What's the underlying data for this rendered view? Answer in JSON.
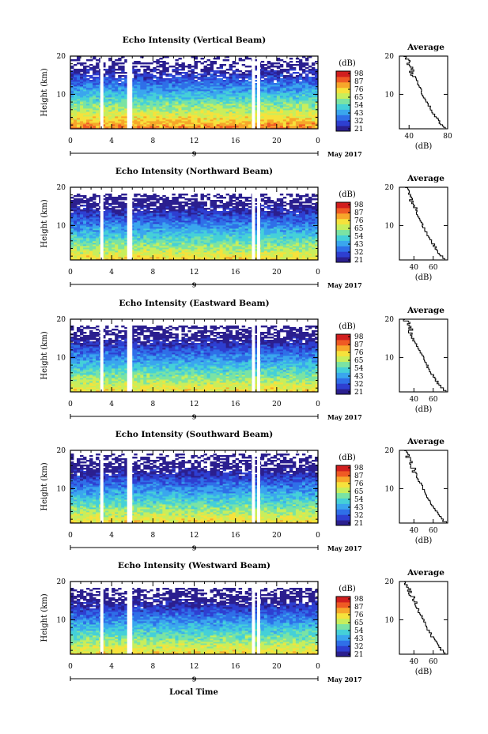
{
  "colors": {
    "colormap": [
      "#2b1f8f",
      "#2e3fd1",
      "#2f6fe8",
      "#3aa6ee",
      "#45d0d8",
      "#7be3a3",
      "#c8ee5c",
      "#f6e23c",
      "#f7a62b",
      "#ef5a24",
      "#d11e1e"
    ]
  },
  "common": {
    "ylabel": "Height (km)",
    "xticks": [
      "0",
      "4",
      "8",
      "12",
      "16",
      "20",
      "0"
    ],
    "date_tick": "9",
    "month_label": "May 2017",
    "xlabel": "Local Time",
    "cbar_unit": "(dB)",
    "cbar_ticks": [
      "98",
      "87",
      "76",
      "65",
      "54",
      "43",
      "32",
      "21"
    ],
    "avg_title": "Average",
    "avg_xlabel": "(dB)"
  },
  "chart_data": [
    {
      "type": "heatmap",
      "title": "Echo Intensity (Vertical Beam)",
      "ylim": [
        1,
        20
      ],
      "yticks": [
        "20",
        "10"
      ],
      "xlim": [
        0,
        24
      ],
      "clim": [
        21,
        98
      ],
      "gaps": [
        [
          2.9,
          3.2
        ],
        [
          5.5,
          6.0
        ],
        [
          17.6,
          17.9
        ],
        [
          18.1,
          18.4
        ]
      ],
      "profile": {
        "xlim": [
          30,
          80
        ],
        "xticks": [
          "40",
          "80"
        ]
      }
    },
    {
      "type": "heatmap",
      "title": "Echo Intensity (Northward Beam)",
      "ylim": [
        1,
        20
      ],
      "yticks": [
        "20",
        "10"
      ],
      "xlim": [
        0,
        24
      ],
      "clim": [
        21,
        98
      ],
      "gaps": [
        [
          2.9,
          3.2
        ],
        [
          5.5,
          6.0
        ],
        [
          17.6,
          17.9
        ],
        [
          18.1,
          18.4
        ]
      ],
      "profile": {
        "xlim": [
          25,
          75
        ],
        "xticks": [
          "40",
          "60"
        ]
      }
    },
    {
      "type": "heatmap",
      "title": "Echo Intensity (Eastward Beam)",
      "ylim": [
        1,
        20
      ],
      "yticks": [
        "20",
        "10"
      ],
      "xlim": [
        0,
        24
      ],
      "clim": [
        21,
        98
      ],
      "gaps": [
        [
          2.9,
          3.2
        ],
        [
          5.5,
          6.0
        ],
        [
          17.6,
          17.9
        ],
        [
          18.1,
          18.4
        ]
      ],
      "profile": {
        "xlim": [
          25,
          75
        ],
        "xticks": [
          "40",
          "60"
        ]
      }
    },
    {
      "type": "heatmap",
      "title": "Echo Intensity (Southward Beam)",
      "ylim": [
        1,
        20
      ],
      "yticks": [
        "20",
        "10"
      ],
      "xlim": [
        0,
        24
      ],
      "clim": [
        21,
        98
      ],
      "gaps": [
        [
          2.9,
          3.2
        ],
        [
          5.5,
          6.0
        ],
        [
          17.6,
          17.9
        ],
        [
          18.1,
          18.4
        ]
      ],
      "profile": {
        "xlim": [
          25,
          75
        ],
        "xticks": [
          "40",
          "60"
        ]
      }
    },
    {
      "type": "heatmap",
      "title": "Echo Intensity (Westward Beam)",
      "ylim": [
        1,
        20
      ],
      "yticks": [
        "20",
        "10"
      ],
      "xlim": [
        0,
        24
      ],
      "clim": [
        21,
        98
      ],
      "gaps": [
        [
          2.9,
          3.2
        ],
        [
          5.5,
          6.0
        ],
        [
          17.6,
          17.9
        ],
        [
          18.1,
          18.4
        ]
      ],
      "profile": {
        "xlim": [
          25,
          75
        ],
        "xticks": [
          "40",
          "60"
        ]
      }
    }
  ]
}
